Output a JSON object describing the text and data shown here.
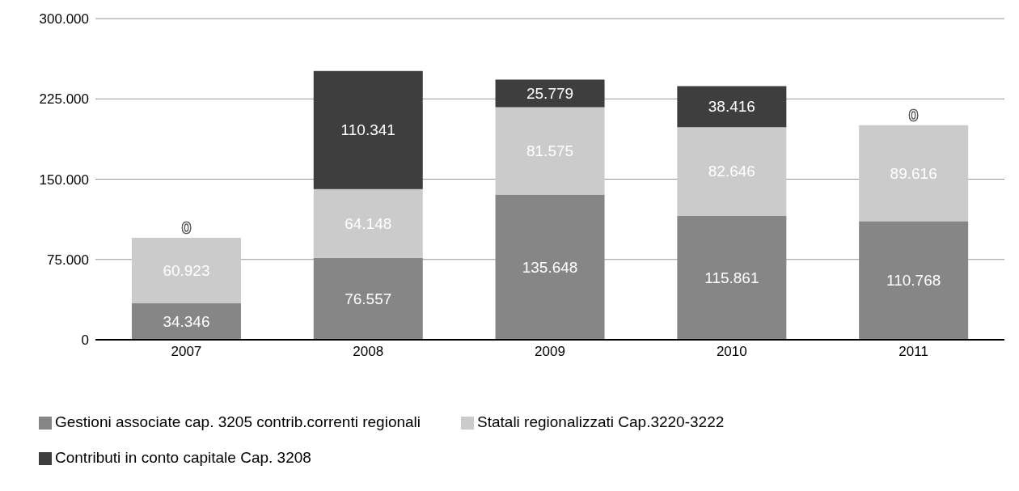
{
  "chart_data": {
    "type": "bar",
    "stacked": true,
    "categories": [
      "2007",
      "2008",
      "2009",
      "2010",
      "2011"
    ],
    "series": [
      {
        "name": "Gestioni associate cap. 3205 contrib.correnti regionali",
        "color": "#868686",
        "values": [
          34346,
          76557,
          135648,
          115861,
          110768
        ],
        "value_labels": [
          "34.346",
          "76.557",
          "135.648",
          "115.861",
          "110.768"
        ]
      },
      {
        "name": "Statali regionalizzati Cap.3220-3222",
        "color": "#cbcbcb",
        "values": [
          60923,
          64148,
          81575,
          82646,
          89616
        ],
        "value_labels": [
          "60.923",
          "64.148",
          "81.575",
          "82.646",
          "89.616"
        ]
      },
      {
        "name": "Contributi in conto capitale Cap. 3208",
        "color": "#3d3e3d",
        "values": [
          0,
          110341,
          25779,
          38416,
          0
        ],
        "value_labels": [
          "0",
          "110.341",
          "25.779",
          "38.416",
          "0"
        ]
      }
    ],
    "ylim": [
      0,
      300000
    ],
    "yticks": [
      {
        "value": 0,
        "label": "0"
      },
      {
        "value": 75000,
        "label": "75.000"
      },
      {
        "value": 150000,
        "label": "150.000"
      },
      {
        "value": 225000,
        "label": "225.000"
      },
      {
        "value": 300000,
        "label": "300.000"
      }
    ],
    "grid": "y",
    "legend": "bottom"
  }
}
